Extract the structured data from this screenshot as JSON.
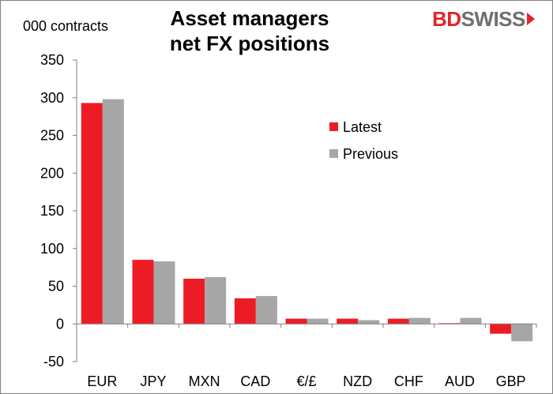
{
  "title_lines": [
    "Asset managers",
    "net FX positions"
  ],
  "unit_label": "000 contracts",
  "logo": {
    "part1": "BD",
    "part2": "SWISS"
  },
  "colors": {
    "latest": "#ed1c24",
    "previous": "#a6a6a6",
    "axis": "#7f7f7f"
  },
  "chart_data": {
    "type": "bar",
    "categories": [
      "EUR",
      "JPY",
      "MXN",
      "CAD",
      "€/£",
      "NZD",
      "CHF",
      "AUD",
      "GBP"
    ],
    "series": [
      {
        "name": "Latest",
        "values": [
          293,
          85,
          60,
          34,
          7,
          7,
          7,
          1,
          -13
        ]
      },
      {
        "name": "Previous",
        "values": [
          298,
          83,
          62,
          37,
          7,
          5,
          8,
          8,
          -23
        ]
      }
    ],
    "ylim": [
      -50,
      350
    ],
    "yticks": [
      -50,
      0,
      50,
      100,
      150,
      200,
      250,
      300,
      350
    ],
    "ytick_labels": [
      "-50",
      "0",
      "50",
      "100",
      "150",
      "200",
      "250",
      "300",
      "350"
    ],
    "ylabel": "000 contracts",
    "grid": false,
    "legend_position": "upper-right"
  }
}
